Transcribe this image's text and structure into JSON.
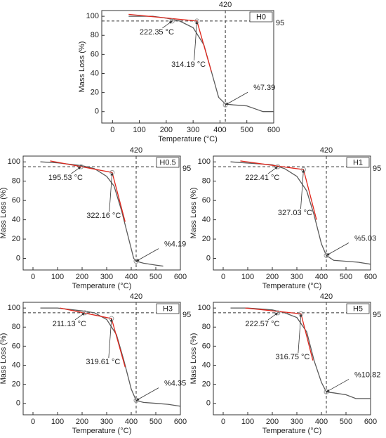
{
  "chart_data": [
    {
      "type": "line",
      "label": "H0",
      "xlabel": "Temperature (°C)",
      "ylabel": "Mass Loss (%)",
      "xlim": [
        -40,
        600
      ],
      "ylim": [
        -12,
        106
      ],
      "xticks": [
        0,
        100,
        200,
        300,
        400,
        500,
        600
      ],
      "yticks": [
        0,
        20,
        40,
        60,
        80,
        100
      ],
      "reference_lines": {
        "x": 420,
        "y": 95
      },
      "series": [
        {
          "color": "#5a5a5a",
          "x": [
            60,
            150,
            200,
            250,
            300,
            340,
            370,
            395,
            420,
            450,
            500,
            530,
            560,
            600
          ],
          "values": [
            100,
            100,
            98,
            95,
            88,
            70,
            40,
            15,
            8,
            7,
            6,
            3,
            0,
            0
          ]
        },
        {
          "color": "#e0261c",
          "x": [
            60,
            314.19,
            368
          ],
          "values": [
            102,
            95,
            42
          ]
        }
      ],
      "annotations": [
        {
          "x": 222.35,
          "y": 95,
          "text": {
            "value": 222.35,
            "label": "222.35 °C"
          }
        },
        {
          "x": 314.19,
          "y": 95,
          "text": {
            "value": 314.19,
            "label": "314.19 °C"
          }
        },
        {
          "x": 420,
          "y": 7,
          "text": {
            "value": 7.39,
            "label": "%7.39"
          }
        }
      ]
    },
    {
      "type": "line",
      "label": "H0.5",
      "xlabel": "Temperature (°C)",
      "ylabel": "Mass Loss (%)",
      "xlim": [
        -40,
        600
      ],
      "ylim": [
        -12,
        106
      ],
      "xticks": [
        0,
        100,
        200,
        300,
        400,
        500,
        600
      ],
      "yticks": [
        0,
        20,
        40,
        60,
        80,
        100
      ],
      "reference_lines": {
        "x": 420,
        "y": 95
      },
      "series": [
        {
          "color": "#5a5a5a",
          "x": [
            30,
            100,
            200,
            250,
            300,
            330,
            360,
            390,
            410,
            420,
            450,
            500,
            530
          ],
          "values": [
            100,
            99,
            96,
            93,
            85,
            75,
            50,
            20,
            0,
            -3,
            -5,
            -7,
            -8
          ]
        },
        {
          "color": "#e0261c",
          "x": [
            70,
            322.16,
            375
          ],
          "values": [
            101,
            89,
            38
          ]
        }
      ],
      "annotations": [
        {
          "x": 195.53,
          "y": 95,
          "text": {
            "value": 195.53,
            "label": "195.53 °C"
          }
        },
        {
          "x": 322.16,
          "y": 89,
          "text": {
            "value": 322.16,
            "label": "322.16 °C"
          }
        },
        {
          "x": 420,
          "y": -3,
          "text": {
            "value": 4.19,
            "label": "%4.19"
          }
        }
      ]
    },
    {
      "type": "line",
      "label": "H1",
      "xlabel": "Temperature (°C)",
      "ylabel": "Mass Loss (%)",
      "xlim": [
        -40,
        600
      ],
      "ylim": [
        -12,
        106
      ],
      "xticks": [
        0,
        100,
        200,
        300,
        400,
        500,
        600
      ],
      "yticks": [
        0,
        20,
        40,
        60,
        80,
        100
      ],
      "reference_lines": {
        "x": 420,
        "y": 95
      },
      "series": [
        {
          "color": "#5a5a5a",
          "x": [
            30,
            200,
            250,
            300,
            340,
            370,
            400,
            420,
            450,
            500,
            550,
            600
          ],
          "values": [
            100,
            97,
            93,
            85,
            70,
            45,
            15,
            3,
            -2,
            -3,
            -4,
            -6
          ]
        },
        {
          "color": "#e0261c",
          "x": [
            70,
            327.03,
            380
          ],
          "values": [
            101,
            92,
            40
          ]
        }
      ],
      "annotations": [
        {
          "x": 222.41,
          "y": 95,
          "text": {
            "value": 222.41,
            "label": "222.41 °C"
          }
        },
        {
          "x": 327.03,
          "y": 92,
          "text": {
            "value": 327.03,
            "label": "327.03 °C"
          }
        },
        {
          "x": 420,
          "y": 3,
          "text": {
            "value": 5.03,
            "label": "%5.03"
          }
        }
      ]
    },
    {
      "type": "line",
      "label": "H3",
      "xlabel": "Temperature (°C)",
      "ylabel": "Mass Loss (%)",
      "xlim": [
        -40,
        600
      ],
      "ylim": [
        -12,
        106
      ],
      "xticks": [
        0,
        100,
        200,
        300,
        400,
        500,
        600
      ],
      "yticks": [
        0,
        20,
        40,
        60,
        80,
        100
      ],
      "reference_lines": {
        "x": 420,
        "y": 95
      },
      "series": [
        {
          "color": "#5a5a5a",
          "x": [
            30,
            100,
            200,
            250,
            300,
            340,
            370,
            400,
            420,
            450,
            500,
            550,
            600
          ],
          "values": [
            100,
            100,
            97,
            95,
            88,
            72,
            45,
            15,
            3,
            1,
            0,
            -1,
            -3
          ]
        },
        {
          "color": "#e0261c",
          "x": [
            110,
            319.61,
            375
          ],
          "values": [
            100,
            89,
            38
          ]
        }
      ],
      "annotations": [
        {
          "x": 211.13,
          "y": 95,
          "text": {
            "value": 211.13,
            "label": "211.13 °C"
          }
        },
        {
          "x": 319.61,
          "y": 89,
          "text": {
            "value": 319.61,
            "label": "319.61 °C"
          }
        },
        {
          "x": 420,
          "y": 3,
          "text": {
            "value": 4.35,
            "label": "%4.35"
          }
        }
      ]
    },
    {
      "type": "line",
      "label": "H5",
      "xlabel": "Temperature (°C)",
      "ylabel": "Mass Loss (%)",
      "xlim": [
        -40,
        600
      ],
      "ylim": [
        -12,
        106
      ],
      "xticks": [
        0,
        100,
        200,
        300,
        400,
        500,
        600
      ],
      "yticks": [
        0,
        20,
        40,
        60,
        80,
        100
      ],
      "reference_lines": {
        "x": 420,
        "y": 95
      },
      "series": [
        {
          "color": "#5a5a5a",
          "x": [
            30,
            100,
            200,
            250,
            300,
            340,
            370,
            400,
            420,
            450,
            500,
            540,
            600
          ],
          "values": [
            100,
            100,
            98,
            95,
            90,
            75,
            45,
            22,
            12,
            11,
            9,
            5,
            5
          ]
        },
        {
          "color": "#e0261c",
          "x": [
            90,
            316.75,
            365
          ],
          "values": [
            100,
            94,
            45
          ]
        }
      ],
      "annotations": [
        {
          "x": 222.57,
          "y": 95,
          "text": {
            "value": 222.57,
            "label": "222.57 °C"
          }
        },
        {
          "x": 316.75,
          "y": 94,
          "text": {
            "value": 316.75,
            "label": "316.75 °C"
          }
        },
        {
          "x": 420,
          "y": 12,
          "text": {
            "value": 10.82,
            "label": "%10.82"
          }
        }
      ]
    }
  ]
}
